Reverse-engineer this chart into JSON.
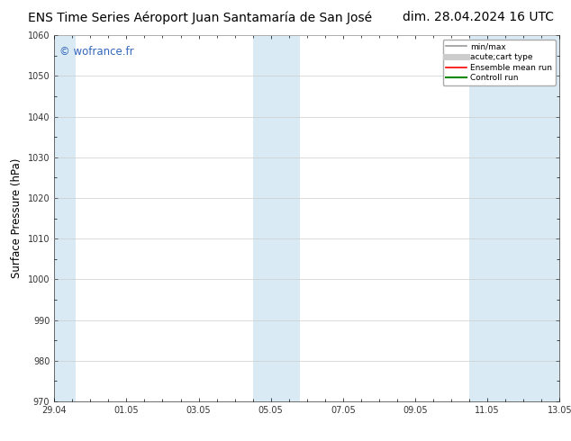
{
  "title_left": "ENS Time Series Aéroport Juan Santamaría de San José",
  "title_right": "dim. 28.04.2024 16 UTC",
  "ylabel": "Surface Pressure (hPa)",
  "ylim": [
    970,
    1060
  ],
  "yticks": [
    970,
    980,
    990,
    1000,
    1010,
    1020,
    1030,
    1040,
    1050,
    1060
  ],
  "xlim_start": 0,
  "xlim_end": 14,
  "xtick_labels": [
    "29.04",
    "01.05",
    "03.05",
    "05.05",
    "07.05",
    "09.05",
    "11.05",
    "13.05"
  ],
  "xtick_positions": [
    0,
    2,
    4,
    6,
    8,
    10,
    12,
    14
  ],
  "shaded_bands": [
    {
      "x_start": 0.0,
      "x_end": 0.6
    },
    {
      "x_start": 5.5,
      "x_end": 6.8
    },
    {
      "x_start": 11.5,
      "x_end": 14.0
    }
  ],
  "shade_color": "#daeaf5",
  "watermark_text": "© wofrance.fr",
  "watermark_color": "#3366bb",
  "legend_entries": [
    {
      "label": "min/max",
      "color": "#999999",
      "lw": 1.2,
      "style": "-"
    },
    {
      "label": "acute;cart type",
      "color": "#cccccc",
      "lw": 5,
      "style": "-"
    },
    {
      "label": "Ensemble mean run",
      "color": "#ff0000",
      "lw": 1.2,
      "style": "-"
    },
    {
      "label": "Controll run",
      "color": "#008800",
      "lw": 1.5,
      "style": "-"
    }
  ],
  "bg_color": "#ffffff",
  "spine_color": "#555555",
  "tick_color": "#333333",
  "title_fontsize": 10,
  "tick_fontsize": 7,
  "ylabel_fontsize": 8.5,
  "watermark_fontsize": 8.5
}
